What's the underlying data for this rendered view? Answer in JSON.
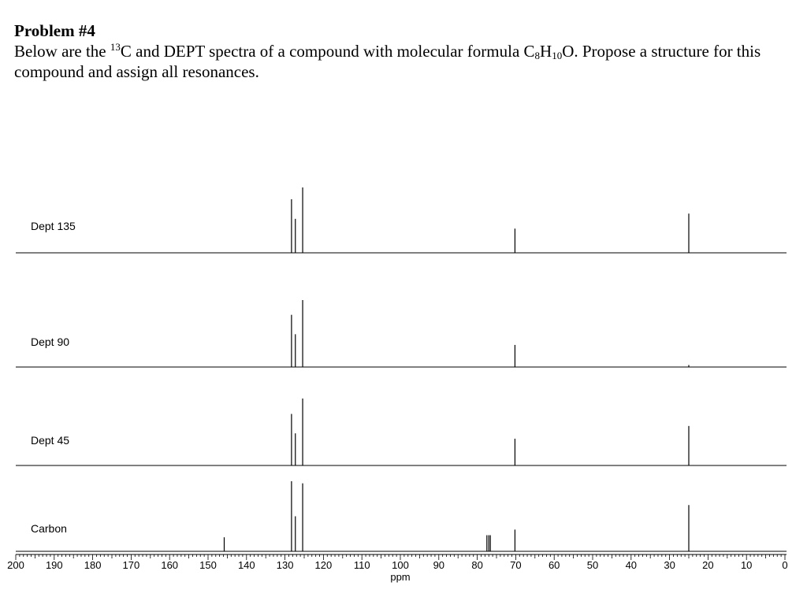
{
  "problem": {
    "title": "Problem #4",
    "text_before_sup": "Below are the ",
    "sup": "13",
    "text_mid": "C and DEPT spectra of a compound with molecular formula C",
    "sub_c": "8",
    "text_h": "H",
    "sub_h": "10",
    "text_after": "O.  Propose a structure for this compound and assign all resonances."
  },
  "chart_data": {
    "type": "line",
    "title": "",
    "xlabel": "ppm",
    "ylabel": "",
    "xlim": [
      200,
      0
    ],
    "x_ticks": [
      200,
      190,
      180,
      170,
      160,
      150,
      140,
      130,
      120,
      110,
      100,
      90,
      80,
      70,
      60,
      50,
      40,
      30,
      20,
      10,
      0
    ],
    "series": [
      {
        "name": "Dept 135",
        "peaks": [
          {
            "ppm": 128.3,
            "intensity": 0.82
          },
          {
            "ppm": 127.3,
            "intensity": 0.52
          },
          {
            "ppm": 125.4,
            "intensity": 1.0
          },
          {
            "ppm": 70.2,
            "intensity": 0.37
          },
          {
            "ppm": 25.0,
            "intensity": 0.6
          }
        ]
      },
      {
        "name": "Dept 90",
        "peaks": [
          {
            "ppm": 128.3,
            "intensity": 0.78
          },
          {
            "ppm": 127.3,
            "intensity": 0.49
          },
          {
            "ppm": 125.4,
            "intensity": 1.0
          },
          {
            "ppm": 70.2,
            "intensity": 0.33
          },
          {
            "ppm": 25.0,
            "intensity": 0.03
          }
        ]
      },
      {
        "name": "Dept 45",
        "peaks": [
          {
            "ppm": 128.3,
            "intensity": 0.77
          },
          {
            "ppm": 127.3,
            "intensity": 0.48
          },
          {
            "ppm": 125.4,
            "intensity": 1.0
          },
          {
            "ppm": 70.2,
            "intensity": 0.4
          },
          {
            "ppm": 25.0,
            "intensity": 0.59
          }
        ]
      },
      {
        "name": "Carbon",
        "peaks": [
          {
            "ppm": 145.8,
            "intensity": 0.2
          },
          {
            "ppm": 128.3,
            "intensity": 1.0
          },
          {
            "ppm": 127.3,
            "intensity": 0.5
          },
          {
            "ppm": 125.4,
            "intensity": 0.97
          },
          {
            "ppm": 77.5,
            "intensity": 0.23
          },
          {
            "ppm": 77.0,
            "intensity": 0.23
          },
          {
            "ppm": 76.6,
            "intensity": 0.23
          },
          {
            "ppm": 70.2,
            "intensity": 0.31
          },
          {
            "ppm": 25.0,
            "intensity": 0.66
          }
        ]
      }
    ]
  }
}
